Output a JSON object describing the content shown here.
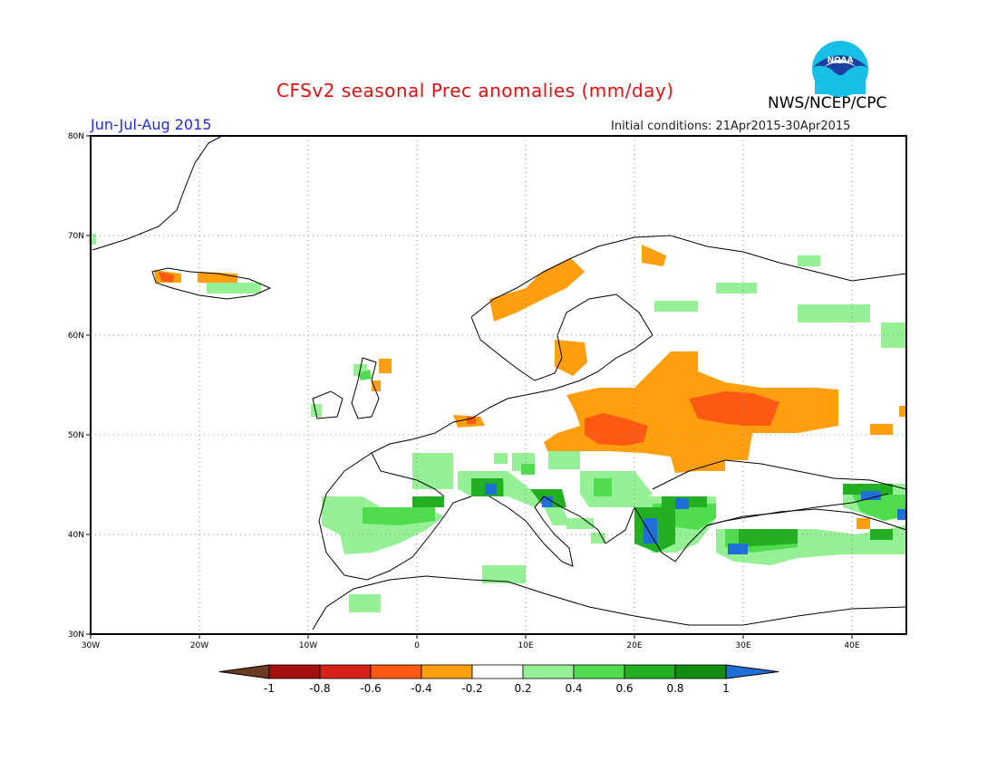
{
  "header": {
    "title": "CFSv2 seasonal Prec anomalies (mm/day)",
    "season": "Jun-Jul-Aug 2015",
    "init_conditions": "Initial conditions: 21Apr2015-30Apr2015",
    "agency": "NWS/NCEP/CPC",
    "logo_text": "NOAA"
  },
  "map": {
    "region": "Europe",
    "lon_range": [
      -30,
      45
    ],
    "lat_range": [
      30,
      80
    ],
    "lon_ticks": [
      "30W",
      "20W",
      "10W",
      "0",
      "10E",
      "20E",
      "30E",
      "40E"
    ],
    "lat_ticks": [
      "30N",
      "40N",
      "50N",
      "60N",
      "70N",
      "80N"
    ],
    "grid": "dotted",
    "anomaly_regions": [
      {
        "area": "Central / Eastern Europe (Germany, Poland, Belarus, Ukraine, W Russia)",
        "sign": "negative",
        "range": "-0.2 to -0.6"
      },
      {
        "area": "Western Norway coast",
        "sign": "negative",
        "range": "-0.2 to -0.4"
      },
      {
        "area": "Southern Sweden",
        "sign": "negative",
        "range": "-0.2 to -0.4"
      },
      {
        "area": "Iberia, southern France, Italy, Balkans",
        "sign": "positive",
        "range": "0.2 to 1"
      },
      {
        "area": "Greece / Aegean",
        "sign": "positive",
        "range": "0.6 to >1"
      },
      {
        "area": "Turkey / Anatolia",
        "sign": "positive",
        "range": "0.2 to >1"
      },
      {
        "area": "Caucasus",
        "sign": "positive",
        "range": "0.2 to >1"
      }
    ]
  },
  "colorbar": {
    "labels": [
      "-1",
      "-0.8",
      "-0.6",
      "-0.4",
      "-0.2",
      "0.2",
      "0.4",
      "0.6",
      "0.8",
      "1"
    ],
    "colors": [
      "#6b3a22",
      "#a50f0f",
      "#d6201a",
      "#ff5a14",
      "#ff9f0f",
      "#ffffff",
      "#96f096",
      "#4fdc4f",
      "#22b022",
      "#108c10",
      "#1f6fd8"
    ]
  }
}
